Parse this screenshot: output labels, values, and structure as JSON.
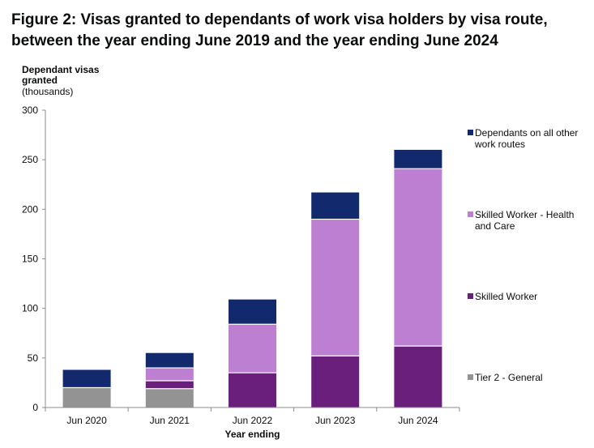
{
  "figure_title": "Figure 2: Visas granted to dependants of work visa holders by visa route, between the year ending June 2019 and the year ending June 2024",
  "colors": {
    "dependants_other": "#12296e",
    "sw_health_care": "#bd7fd1",
    "skilled_worker": "#6b1f7c",
    "tier2_general": "#939393",
    "axis": "#8c8c8c",
    "gridline": "#d9d9d9"
  },
  "legend": [
    {
      "label": "Dependants on all other work routes",
      "color": "#12296e"
    },
    {
      "label": "Skilled Worker - Health and Care",
      "color": "#bd7fd1"
    },
    {
      "label": "Skilled Worker",
      "color": "#6b1f7c"
    },
    {
      "label": "Tier 2 - General",
      "color": "#939393"
    }
  ],
  "chart_data": {
    "type": "bar",
    "stacked": true,
    "title": "Figure 2: Visas granted to dependants of work visa holders by visa route, between the year ending June 2019 and the year ending June 2024",
    "ylabel": "Dependant visas granted",
    "ylabel_unit": "(thousands)",
    "xlabel": "Year ending",
    "categories": [
      "Jun 2020",
      "Jun 2021",
      "Jun 2022",
      "Jun 2023",
      "Jun 2024"
    ],
    "ylim": [
      0,
      300
    ],
    "yticks": [
      0,
      50,
      100,
      150,
      200,
      250,
      300
    ],
    "grid": false,
    "legend_position": "right",
    "series": [
      {
        "name": "Tier 2 - General",
        "color": "#939393",
        "values": [
          20,
          19,
          0,
          0,
          0
        ]
      },
      {
        "name": "Skilled Worker",
        "color": "#6b1f7c",
        "values": [
          0,
          8,
          35,
          52,
          62
        ]
      },
      {
        "name": "Skilled Worker - Health and Care",
        "color": "#bd7fd1",
        "values": [
          0,
          13,
          49,
          138,
          179
        ]
      },
      {
        "name": "Dependants on all other work routes",
        "color": "#12296e",
        "values": [
          18,
          15,
          25,
          27,
          19
        ]
      }
    ]
  }
}
